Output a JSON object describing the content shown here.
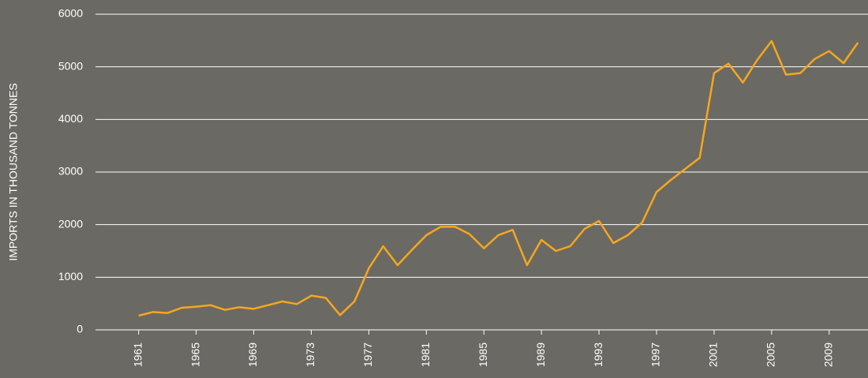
{
  "chart_data": {
    "type": "line",
    "y_label": "IMPORTS IN THOUSAND TONNES",
    "x": [
      1961,
      1962,
      1963,
      1964,
      1965,
      1966,
      1967,
      1968,
      1969,
      1970,
      1971,
      1972,
      1973,
      1974,
      1975,
      1976,
      1977,
      1978,
      1979,
      1980,
      1981,
      1982,
      1983,
      1984,
      1985,
      1986,
      1987,
      1988,
      1989,
      1990,
      1991,
      1992,
      1993,
      1994,
      1995,
      1996,
      1997,
      1998,
      1999,
      2000,
      2001,
      2002,
      2003,
      2004,
      2005,
      2006,
      2007,
      2008,
      2009,
      2010,
      2011
    ],
    "series": [
      {
        "color": "#f5a71d",
        "values": [
          270,
          340,
          320,
          420,
          440,
          470,
          380,
          430,
          400,
          470,
          540,
          490,
          650,
          610,
          280,
          540,
          1170,
          1590,
          1230,
          1520,
          1800,
          1960,
          1960,
          1820,
          1550,
          1800,
          1900,
          1230,
          1710,
          1500,
          1590,
          1920,
          2070,
          1650,
          1800,
          2040,
          2620,
          2850,
          3060,
          3270,
          4880,
          5060,
          4700,
          5130,
          5490,
          4850,
          4880,
          5150,
          5300,
          5070,
          5460
        ]
      }
    ],
    "xlim": [
      1958,
      2011.7
    ],
    "xticks": [
      1961,
      1965,
      1969,
      1973,
      1977,
      1981,
      1985,
      1989,
      1993,
      1997,
      2001,
      2005,
      2009
    ],
    "ylim": [
      0,
      6000
    ],
    "yticks": [
      0,
      1000,
      2000,
      3000,
      4000,
      5000,
      6000
    ],
    "grid": true
  }
}
